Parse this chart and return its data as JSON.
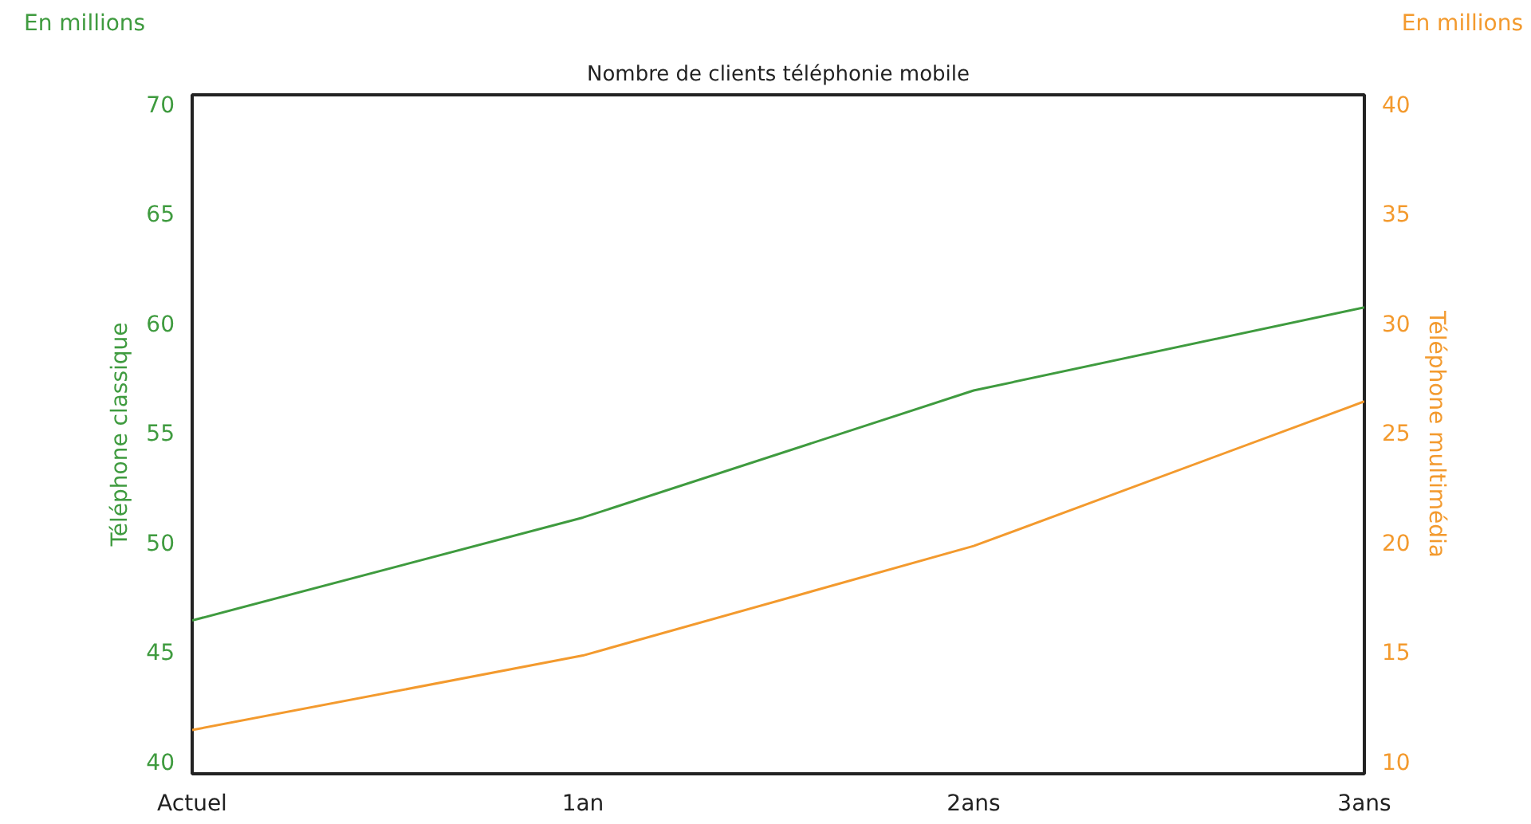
{
  "chart_data": {
    "type": "line",
    "title": "Nombre de clients téléphonie mobile",
    "categories": [
      "Actuel",
      "1an",
      "2ans",
      "3ans"
    ],
    "ylabel": "Téléphone classique",
    "y2label": "Téléphone multimédia",
    "annotations": [
      "En millions",
      "En millions"
    ],
    "series": [
      {
        "color": "#3f9b3f",
        "values": [
          46.4,
          51.1,
          56.9,
          60.7
        ]
      },
      {
        "color": "#f39a2e",
        "values": [
          11.4,
          14.8,
          19.8,
          26.4
        ],
        "axis": "y2"
      }
    ],
    "ylim": [
      39.4,
      70.4
    ],
    "yticks": [
      40,
      45,
      50,
      55,
      60,
      65,
      70
    ],
    "y2lim": [
      9.4,
      40.4
    ],
    "y2ticks": [
      10,
      15,
      20,
      25,
      30,
      35,
      40
    ],
    "grid": false,
    "marker": "none",
    "line_style": "solid"
  }
}
